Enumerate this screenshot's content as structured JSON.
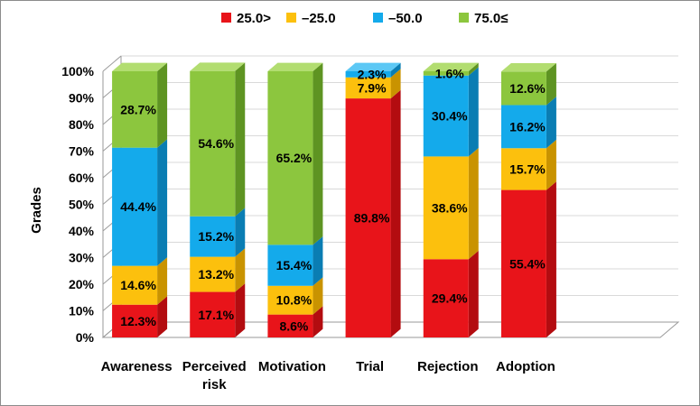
{
  "chart_data": {
    "type": "bar",
    "stacked": true,
    "percent": true,
    "ylabel": "Grades",
    "xlabel": "",
    "ylim": [
      0,
      100
    ],
    "yticks": [
      "0%",
      "10%",
      "20%",
      "30%",
      "40%",
      "50%",
      "60%",
      "70%",
      "80%",
      "90%",
      "100%"
    ],
    "legend_position": "top",
    "categories": [
      "Awareness",
      "Perceived risk",
      "Motivation",
      "Trial",
      "Rejection",
      "Adoption"
    ],
    "category_lines": [
      [
        "Awareness"
      ],
      [
        "Perceived",
        "risk"
      ],
      [
        "Motivation"
      ],
      [
        "Trial"
      ],
      [
        "Rejection"
      ],
      [
        "Adoption"
      ]
    ],
    "series": [
      {
        "name": "25.0>",
        "color": "#e8141a",
        "side": "#b30c10",
        "top": "#ff5a5e",
        "values": [
          12.3,
          17.1,
          8.6,
          89.8,
          29.4,
          55.4
        ],
        "labels": [
          "12.3%",
          "17.1%",
          "8.6%",
          "89.8%",
          "29.4%",
          "55.4%"
        ]
      },
      {
        "name": "–25.0",
        "color": "#fcc00d",
        "side": "#c99300",
        "top": "#ffd95a",
        "values": [
          14.6,
          13.2,
          10.8,
          7.9,
          38.6,
          15.7
        ],
        "labels": [
          "14.6%",
          "13.2%",
          "10.8%",
          "7.9%",
          "38.6%",
          "15.7%"
        ]
      },
      {
        "name": "–50.0",
        "color": "#14aaeb",
        "side": "#0a7db3",
        "top": "#5cc8f5",
        "values": [
          44.4,
          15.2,
          15.4,
          2.3,
          30.4,
          16.2
        ],
        "labels": [
          "44.4%",
          "15.2%",
          "15.4%",
          "2.3%",
          "30.4%",
          "16.2%"
        ]
      },
      {
        "name": "75.0≤",
        "color": "#8cc63e",
        "side": "#5e9422",
        "top": "#b2dd70",
        "values": [
          28.7,
          54.6,
          65.2,
          0,
          1.6,
          12.6
        ],
        "labels": [
          "28.7%",
          "54.6%",
          "65.2%",
          "",
          "1.6%",
          "12.6%"
        ]
      }
    ]
  }
}
